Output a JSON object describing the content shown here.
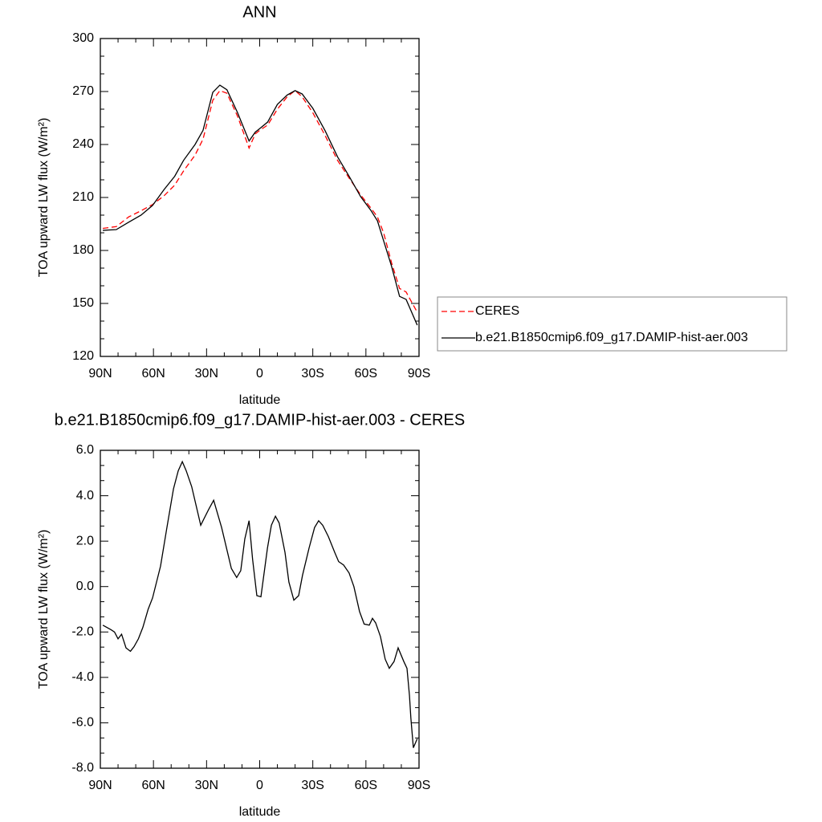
{
  "chart_data": [
    {
      "type": "line",
      "title": "ANN",
      "xlabel": "latitude",
      "ylabel": "TOA upward LW flux (W/m²)",
      "x": [
        88.6,
        81,
        74,
        67,
        60.5,
        54,
        48,
        43,
        36.5,
        32,
        26.5,
        22.5,
        18.5,
        12.5,
        6,
        2.5,
        0,
        -4.5,
        -10,
        -15.5,
        -20,
        -24,
        -30,
        -37,
        -44,
        -50.5,
        -57,
        -62.8,
        -66.5,
        -70,
        -74.5,
        -79,
        -82.7,
        -89
      ],
      "series": [
        {
          "name": "CERES",
          "color": "#ff0000",
          "linestyle": "dashed",
          "values": [
            192.5,
            193.5,
            199,
            202.5,
            206,
            211,
            217,
            225,
            234,
            243,
            265,
            270.5,
            269,
            256,
            238,
            246,
            248,
            251,
            260,
            267,
            270.5,
            267,
            258,
            245,
            231,
            221,
            211.5,
            204,
            199,
            190,
            173,
            158.5,
            156.5,
            145
          ]
        },
        {
          "name": "b.e21.B1850cmip6.f09_g17.DAMIP-hist-aer.003",
          "color": "#000000",
          "linestyle": "solid",
          "values": [
            191.4,
            191.8,
            196,
            200,
            205.5,
            214.5,
            222,
            231,
            240,
            248,
            269.5,
            273.6,
            271,
            258,
            242,
            247,
            249,
            252.7,
            262.7,
            268,
            270.5,
            268.6,
            260.5,
            247.7,
            233,
            222,
            210.5,
            202.7,
            196.8,
            185.5,
            171,
            154,
            152.3,
            137.7
          ]
        }
      ],
      "xlim": [
        90,
        -90
      ],
      "xticks": [
        {
          "value": 90,
          "label": "90N"
        },
        {
          "value": 60,
          "label": "60N"
        },
        {
          "value": 30,
          "label": "30N"
        },
        0,
        {
          "value": -30,
          "label": "30S"
        },
        {
          "value": -60,
          "label": "60S"
        },
        {
          "value": -90,
          "label": "90S"
        }
      ],
      "ylim": [
        120,
        300
      ],
      "yticks": [
        120,
        150,
        180,
        210,
        240,
        270,
        300
      ],
      "legend": "outside-right"
    },
    {
      "type": "line",
      "title": "b.e21.B1850cmip6.f09_g17.DAMIP-hist-aer.003 - CERES",
      "xlabel": "latitude",
      "ylabel": "TOA upward LW flux (W/m²)",
      "x": [
        88.6,
        84,
        82,
        80,
        78,
        75.5,
        73,
        71,
        68.5,
        66,
        63,
        60.5,
        56,
        52.4,
        48.7,
        46,
        43.7,
        41.5,
        38.4,
        33.3,
        28.8,
        26,
        21.5,
        16,
        13,
        10.7,
        8.4,
        6,
        4,
        1.6,
        -0.7,
        -4.4,
        -6.6,
        -8.9,
        -11,
        -14.3,
        -16.5,
        -19.3,
        -22,
        -24.2,
        -27.9,
        -31,
        -33.3,
        -35.6,
        -38.8,
        -42.4,
        -44.6,
        -47.4,
        -50.5,
        -53.2,
        -56.4,
        -59,
        -61.9,
        -63.7,
        -65.5,
        -68.2,
        -70.9,
        -73.2,
        -75.9,
        -78.2,
        -81.4,
        -83.2,
        -84.6,
        -85.4,
        -86.8,
        -89
      ],
      "values": [
        -1.7,
        -1.9,
        -2.0,
        -2.3,
        -2.1,
        -2.7,
        -2.85,
        -2.65,
        -2.3,
        -1.8,
        -1.0,
        -0.5,
        0.9,
        2.6,
        4.3,
        5.1,
        5.5,
        5.1,
        4.4,
        2.7,
        3.4,
        3.8,
        2.6,
        0.8,
        0.4,
        0.7,
        2.1,
        2.9,
        1.2,
        -0.4,
        -0.45,
        1.7,
        2.7,
        3.1,
        2.8,
        1.5,
        0.2,
        -0.6,
        -0.4,
        0.5,
        1.7,
        2.6,
        2.9,
        2.7,
        2.2,
        1.5,
        1.1,
        0.95,
        0.6,
        0.0,
        -1.1,
        -1.65,
        -1.7,
        -1.4,
        -1.6,
        -2.2,
        -3.2,
        -3.6,
        -3.3,
        -2.7,
        -3.3,
        -3.6,
        -4.8,
        -5.8,
        -7.1,
        -6.7
      ],
      "color": "#000000",
      "xlim": [
        90,
        -90
      ],
      "xticks": [
        {
          "value": 90,
          "label": "90N"
        },
        {
          "value": 60,
          "label": "60N"
        },
        {
          "value": 30,
          "label": "30N"
        },
        0,
        {
          "value": -30,
          "label": "30S"
        },
        {
          "value": -60,
          "label": "60S"
        },
        {
          "value": -90,
          "label": "90S"
        }
      ],
      "ylim": [
        -8,
        6
      ],
      "yticks": [
        {
          "value": -8,
          "label": "-8.0"
        },
        {
          "value": -6,
          "label": "-6.0"
        },
        {
          "value": -4,
          "label": "-4.0"
        },
        {
          "value": -2,
          "label": "-2.0"
        },
        {
          "value": 0,
          "label": "0.0"
        },
        {
          "value": 2,
          "label": "2.0"
        },
        {
          "value": 4,
          "label": "4.0"
        },
        {
          "value": 6,
          "label": "6.0"
        }
      ]
    }
  ]
}
